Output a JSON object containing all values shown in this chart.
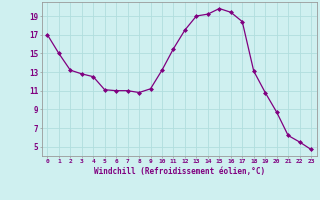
{
  "x": [
    0,
    1,
    2,
    3,
    4,
    5,
    6,
    7,
    8,
    9,
    10,
    11,
    12,
    13,
    14,
    15,
    16,
    17,
    18,
    19,
    20,
    21,
    22,
    23
  ],
  "y": [
    17.0,
    15.0,
    13.2,
    12.8,
    12.5,
    11.1,
    11.0,
    11.0,
    10.8,
    11.2,
    13.2,
    15.5,
    17.5,
    19.0,
    19.2,
    19.8,
    19.4,
    18.4,
    13.1,
    10.8,
    8.7,
    6.2,
    5.5,
    4.7
  ],
  "line_color": "#800080",
  "marker": "D",
  "marker_size": 2.0,
  "bg_color": "#cff0f0",
  "grid_color": "#b0dede",
  "xlabel": "Windchill (Refroidissement éolien,°C)",
  "xlabel_color": "#800080",
  "ylabel_ticks": [
    5,
    7,
    9,
    11,
    13,
    15,
    17,
    19
  ],
  "xtick_labels": [
    "0",
    "1",
    "2",
    "3",
    "4",
    "5",
    "6",
    "7",
    "8",
    "9",
    "10",
    "11",
    "12",
    "13",
    "14",
    "15",
    "16",
    "17",
    "18",
    "19",
    "20",
    "21",
    "22",
    "23"
  ],
  "ylim": [
    4.0,
    20.5
  ],
  "xlim": [
    -0.5,
    23.5
  ],
  "tick_color": "#800080",
  "spine_color": "#999999"
}
